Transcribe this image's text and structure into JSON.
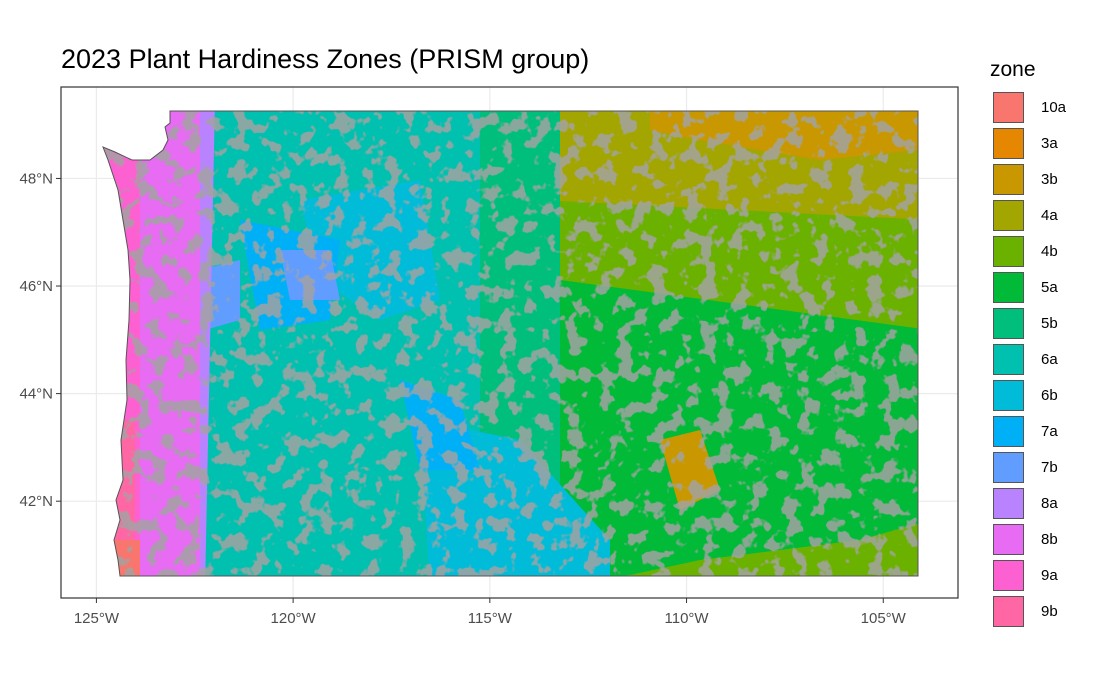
{
  "title": "2023 Plant Hardiness Zones (PRISM group)",
  "axes": {
    "x_ticks": [
      {
        "value": -125,
        "label": "125°W"
      },
      {
        "value": -120,
        "label": "120°W"
      },
      {
        "value": -115,
        "label": "115°W"
      },
      {
        "value": -110,
        "label": "110°W"
      },
      {
        "value": -105,
        "label": "105°W"
      }
    ],
    "y_ticks": [
      {
        "value": 48,
        "label": "48°N"
      },
      {
        "value": 46,
        "label": "46°N"
      },
      {
        "value": 44,
        "label": "44°N"
      },
      {
        "value": 42,
        "label": "42°N"
      }
    ],
    "x_range": [
      -125.9,
      -103.1
    ],
    "y_range": [
      40.2,
      49.7
    ],
    "grid": true
  },
  "legend": {
    "title": "zone",
    "position": "right",
    "items": [
      {
        "label": "10a",
        "color": "#F8766D"
      },
      {
        "label": "3a",
        "color": "#E58700"
      },
      {
        "label": "3b",
        "color": "#C99800"
      },
      {
        "label": "4a",
        "color": "#A3A500"
      },
      {
        "label": "4b",
        "color": "#6BB100"
      },
      {
        "label": "5a",
        "color": "#00BA38"
      },
      {
        "label": "5b",
        "color": "#00BF7D"
      },
      {
        "label": "6a",
        "color": "#00C0AF"
      },
      {
        "label": "6b",
        "color": "#00BCD8"
      },
      {
        "label": "7a",
        "color": "#00B0F6"
      },
      {
        "label": "7b",
        "color": "#619CFF"
      },
      {
        "label": "8a",
        "color": "#B983FF"
      },
      {
        "label": "8b",
        "color": "#E76BF3"
      },
      {
        "label": "9a",
        "color": "#FD61D1"
      },
      {
        "label": "9b",
        "color": "#FF67A4"
      }
    ]
  },
  "colors": {
    "contour_lines": "#5f5f5f",
    "grid": "#ebebeb",
    "panel_border": "#333333"
  }
}
